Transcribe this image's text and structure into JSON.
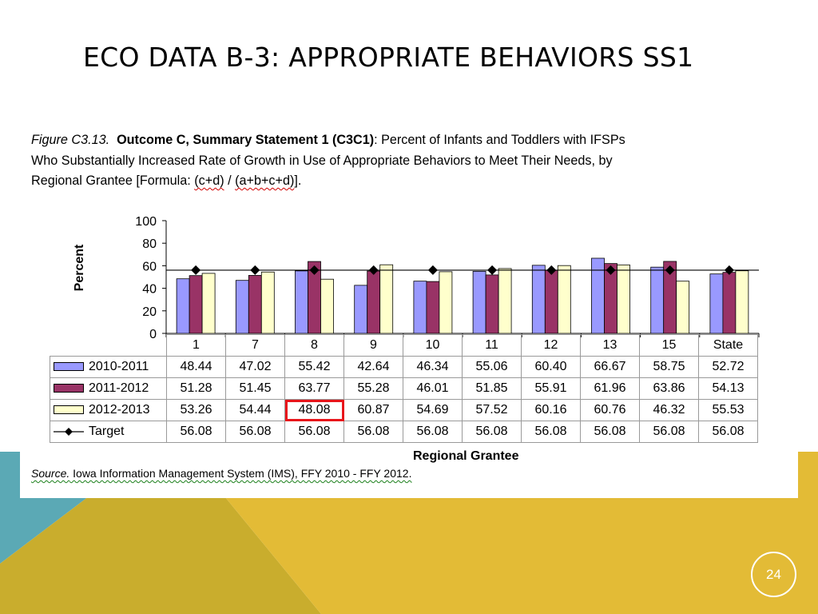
{
  "slide": {
    "title": "ECO DATA B-3: APPROPRIATE BEHAVIORS SS1",
    "page_number": "24",
    "colors": {
      "teal": "#5ba9b5",
      "gold": "#e3bb36",
      "olive": "#c9ad2d"
    }
  },
  "caption": {
    "figure_label": "Figure C3.13.",
    "outcome": "Outcome C, Summary Statement 1 (C3C1)",
    "text_line1": ": Percent of Infants and Toddlers with IFSPs",
    "text_line2": "Who Substantially Increased Rate of Growth in Use of Appropriate Behaviors to Meet Their Needs, by",
    "text_line3_prefix": "Regional Grantee [Formula: ",
    "formula_numerator": "(c+d)",
    "formula_slash": " / ",
    "formula_denominator": "(a+b+c+d)",
    "text_line3_suffix": "]."
  },
  "source": {
    "label": "Source.",
    "text": " Iowa Information Management System (IMS), FFY 2010 - FFY 2012."
  },
  "chart_data": {
    "type": "bar",
    "title": "",
    "xlabel": "Regional Grantee",
    "ylabel": "Percent",
    "ylim": [
      0,
      100
    ],
    "yticks": [
      0,
      20,
      40,
      60,
      80,
      100
    ],
    "grid": false,
    "legend": "table-left",
    "categories": [
      "1",
      "7",
      "8",
      "9",
      "10",
      "11",
      "12",
      "13",
      "15",
      "State"
    ],
    "series": [
      {
        "name": "2010-2011",
        "color": "#9999ff",
        "values": [
          48.44,
          47.02,
          55.42,
          42.64,
          46.34,
          55.06,
          60.4,
          66.67,
          58.75,
          52.72
        ],
        "labels": [
          "48.44",
          "47.02",
          "55.42",
          "42.64",
          "46.34",
          "55.06",
          "60.40",
          "66.67",
          "58.75",
          "52.72"
        ]
      },
      {
        "name": "2011-2012",
        "color": "#993366",
        "values": [
          51.28,
          51.45,
          63.77,
          55.28,
          46.01,
          51.85,
          55.91,
          61.96,
          63.86,
          54.13
        ],
        "labels": [
          "51.28",
          "51.45",
          "63.77",
          "55.28",
          "46.01",
          "51.85",
          "55.91",
          "61.96",
          "63.86",
          "54.13"
        ]
      },
      {
        "name": "2012-2013",
        "color": "#ffffcc",
        "values": [
          53.26,
          54.44,
          48.08,
          60.87,
          54.69,
          57.52,
          60.16,
          60.76,
          46.32,
          55.53
        ],
        "labels": [
          "53.26",
          "54.44",
          "48.08",
          "60.87",
          "54.69",
          "57.52",
          "60.16",
          "60.76",
          "46.32",
          "55.53"
        ]
      }
    ],
    "target": {
      "name": "Target",
      "color": "#000000",
      "values": [
        56.08,
        56.08,
        56.08,
        56.08,
        56.08,
        56.08,
        56.08,
        56.08,
        56.08,
        56.08
      ],
      "labels": [
        "56.08",
        "56.08",
        "56.08",
        "56.08",
        "56.08",
        "56.08",
        "56.08",
        "56.08",
        "56.08",
        "56.08"
      ]
    },
    "highlighted_cell": {
      "series": "2012-2013",
      "category": "8"
    }
  }
}
